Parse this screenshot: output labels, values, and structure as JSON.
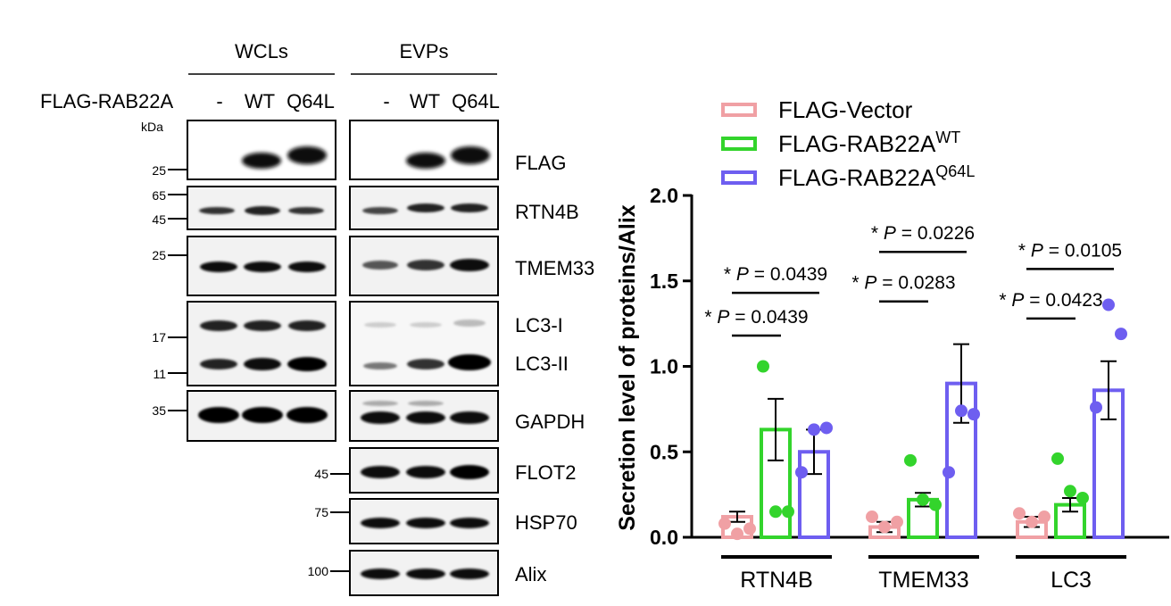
{
  "western_blot": {
    "groups": [
      {
        "label": "WCLs",
        "lanes": [
          "-",
          "WT",
          "Q64L"
        ]
      },
      {
        "label": "EVPs",
        "lanes": [
          "-",
          "WT",
          "Q64L"
        ]
      }
    ],
    "construct_label": "FLAG-RAB22A",
    "kda_label": "kDa",
    "markers": [
      "25",
      "65",
      "45",
      "25",
      "17",
      "11",
      "35",
      "45",
      "75",
      "100"
    ],
    "bands": {
      "flag": "FLAG",
      "rtn4b": "RTN4B",
      "tmem33": "TMEM33",
      "lc3i": "LC3-I",
      "lc3ii": "LC3-II",
      "gapdh": "GAPDH",
      "flot2": "FLOT2",
      "hsp70": "HSP70",
      "alix": "Alix"
    }
  },
  "chart_data": {
    "type": "bar",
    "ylabel": "Secretion level of proteins/Alix",
    "ylim": [
      0,
      2.0
    ],
    "yticks": [
      "0.0",
      "0.5",
      "1.0",
      "1.5",
      "2.0"
    ],
    "categories": [
      "RTN4B",
      "TMEM33",
      "LC3"
    ],
    "legend_position": "top-right",
    "series": [
      {
        "name": "FLAG-Vector",
        "sup": "",
        "color": "#f0a0a4",
        "values": [
          0.12,
          0.06,
          0.09
        ],
        "sem": [
          0.03,
          0.03,
          0.03
        ],
        "points": [
          [
            0.08,
            0.12,
            0.14
          ],
          [
            0.02,
            0.06,
            0.09
          ],
          [
            0.05,
            0.09,
            0.12
          ]
        ]
      },
      {
        "name": "FLAG-RAB22A",
        "sup": "WT",
        "color": "#33d42c",
        "values": [
          0.63,
          0.22,
          0.19
        ],
        "sem": [
          0.18,
          0.04,
          0.04
        ],
        "points": [
          [
            1.0,
            0.45,
            0.46
          ],
          [
            0.15,
            0.22,
            0.27
          ],
          [
            0.15,
            0.19,
            0.23
          ]
        ]
      },
      {
        "name": "FLAG-RAB22A",
        "sup": "Q64L",
        "color": "#6e5ef0",
        "values": [
          0.5,
          0.9,
          0.86
        ],
        "sem": [
          0.13,
          0.23,
          0.17
        ],
        "points": [
          [
            0.38,
            0.38,
            0.76
          ],
          [
            0.63,
            0.74,
            1.36
          ],
          [
            0.64,
            0.72,
            1.19
          ]
        ]
      }
    ],
    "annotations": [
      {
        "text": "* P = 0.0439",
        "group": 0,
        "from": 0,
        "to": 2,
        "y": 1.43
      },
      {
        "text": "* P = 0.0439",
        "group": 0,
        "from": 0,
        "to": 1,
        "y": 1.18
      },
      {
        "text": "* P = 0.0226",
        "group": 1,
        "from": 0,
        "to": 2,
        "y": 1.67
      },
      {
        "text": "* P = 0.0283",
        "group": 1,
        "from": 0,
        "to": 1,
        "y": 1.38
      },
      {
        "text": "* P = 0.0105",
        "group": 2,
        "from": 0,
        "to": 2,
        "y": 1.57
      },
      {
        "text": "* P = 0.0423",
        "group": 2,
        "from": 0,
        "to": 1,
        "y": 1.28
      }
    ]
  }
}
